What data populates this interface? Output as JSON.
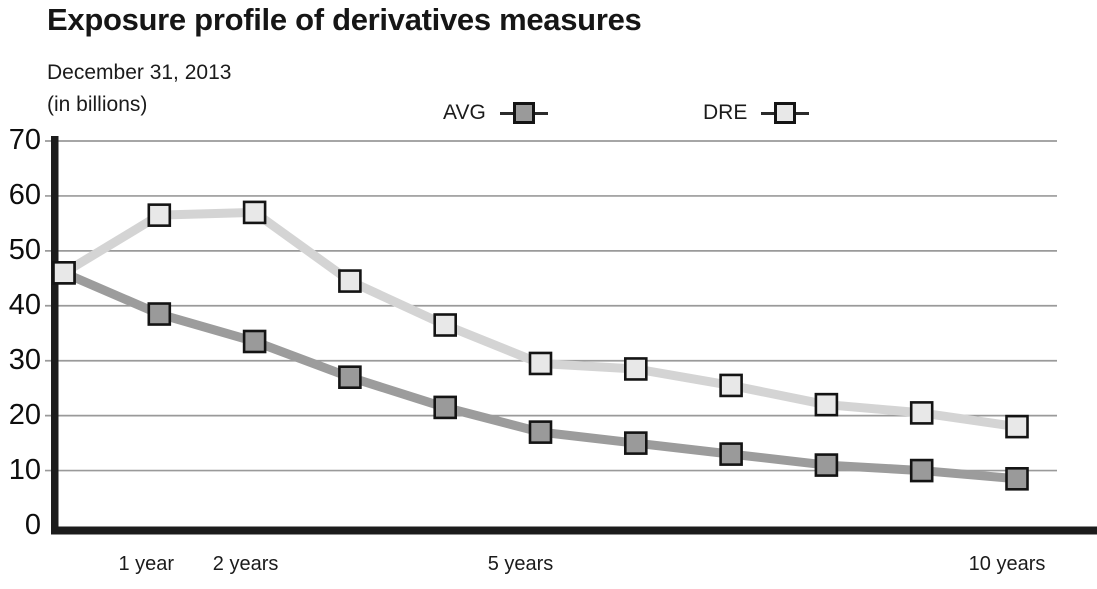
{
  "title": "Exposure profile of derivatives measures",
  "subtitle": {
    "line1": "December 31, 2013",
    "line2": "(in billions)"
  },
  "legend": {
    "items": [
      {
        "label": "AVG"
      },
      {
        "label": "DRE"
      }
    ],
    "position": "top"
  },
  "chart_data": {
    "type": "line",
    "x": [
      0,
      1,
      2,
      3,
      4,
      5,
      6,
      7,
      8,
      9,
      10
    ],
    "x_unit": "years",
    "series": [
      {
        "name": "AVG",
        "line_color": "#9c9c9c",
        "marker_fill": "#9a9a9a",
        "marker_shape": "square",
        "values": [
          46,
          38.5,
          33.5,
          27,
          21.5,
          17,
          15,
          13,
          11,
          10,
          8.5
        ]
      },
      {
        "name": "DRE",
        "line_color": "#d4d4d4",
        "marker_fill": "#e8e8e8",
        "marker_shape": "square",
        "values": [
          46,
          56.5,
          57,
          44.5,
          36.5,
          29.5,
          28.5,
          25.5,
          22,
          20.5,
          18
        ]
      }
    ],
    "title": "Exposure profile of derivatives measures",
    "xlabel": "",
    "ylabel": "(in billions)",
    "ylim": [
      0,
      70
    ],
    "yticks": [
      0,
      10,
      20,
      30,
      40,
      50,
      60,
      70
    ],
    "x_tick_labels": [
      {
        "label": "1 year",
        "year": 1
      },
      {
        "label": "2 years",
        "year": 2
      },
      {
        "label": "5 years",
        "year": 5
      },
      {
        "label": "10 years",
        "year": 10
      }
    ],
    "grid": "horizontal",
    "grid_color": "#9a9a9a",
    "axis_color": "#1c1c1c",
    "marker_border_color": "#141414"
  }
}
